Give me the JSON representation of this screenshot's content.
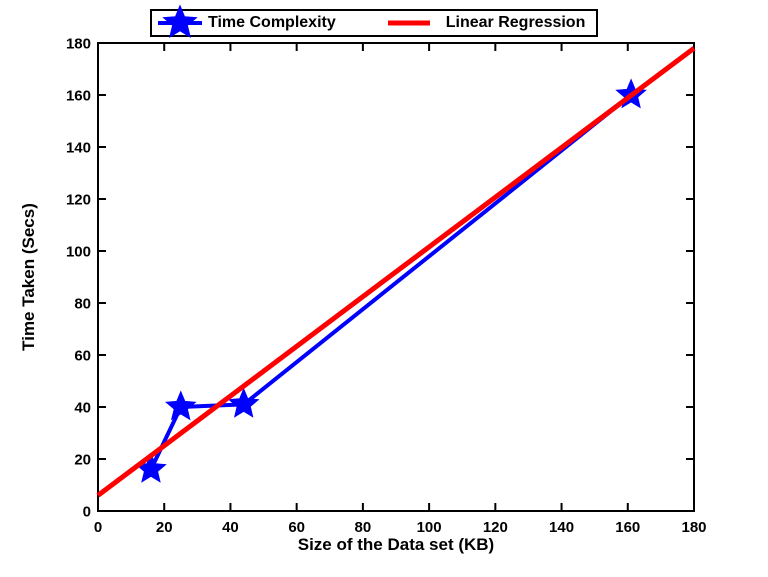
{
  "figure": {
    "background": "#ffffff",
    "axis_color": "#000000"
  },
  "chart_data": {
    "type": "line",
    "title": "",
    "xlabel": "Size of the Data set (KB)",
    "ylabel": "Time Taken (Secs)",
    "xlim": [
      0,
      180
    ],
    "ylim": [
      0,
      180
    ],
    "xticks": [
      0,
      20,
      40,
      60,
      80,
      100,
      120,
      140,
      160,
      180
    ],
    "yticks": [
      0,
      20,
      40,
      60,
      80,
      100,
      120,
      140,
      160,
      180
    ],
    "grid": false,
    "legend": {
      "position": "top-center-outside",
      "border": true
    },
    "series": [
      {
        "name": "Time Complexity",
        "color": "#0000FF",
        "line_width": 4,
        "marker": "pentagram",
        "marker_size": 14,
        "points": [
          [
            16,
            16
          ],
          [
            25,
            40
          ],
          [
            44,
            41
          ],
          [
            161,
            160
          ]
        ]
      },
      {
        "name": "Linear Regression",
        "color": "#FF0000",
        "line_width": 5,
        "marker": "none",
        "points": [
          [
            0,
            6
          ],
          [
            180,
            178
          ]
        ]
      }
    ]
  }
}
